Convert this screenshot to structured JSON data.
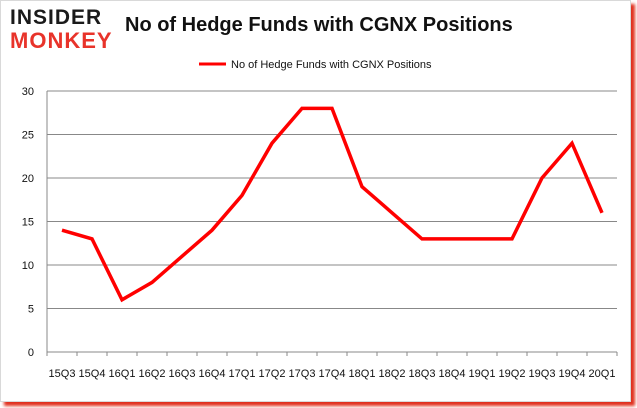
{
  "logo": {
    "line1": "INSIDER",
    "line2": "MONKEY"
  },
  "chart_data": {
    "type": "line",
    "title": "No of Hedge Funds with CGNX Positions",
    "xlabel": "",
    "ylabel": "",
    "categories": [
      "15Q3",
      "15Q4",
      "16Q1",
      "16Q2",
      "16Q3",
      "16Q4",
      "17Q1",
      "17Q2",
      "17Q3",
      "17Q4",
      "18Q1",
      "18Q2",
      "18Q3",
      "18Q4",
      "19Q1",
      "19Q2",
      "19Q3",
      "19Q4",
      "20Q1"
    ],
    "series": [
      {
        "name": "No of Hedge Funds with CGNX Positions",
        "color": "#ff0000",
        "values": [
          14,
          13,
          6,
          8,
          11,
          14,
          18,
          24,
          28,
          28,
          19,
          16,
          13,
          13,
          13,
          13,
          20,
          24,
          16
        ]
      }
    ],
    "ylim": [
      0,
      30
    ],
    "yticks": [
      0,
      5,
      10,
      15,
      20,
      25,
      30
    ],
    "grid": true,
    "legend_position": "top"
  }
}
